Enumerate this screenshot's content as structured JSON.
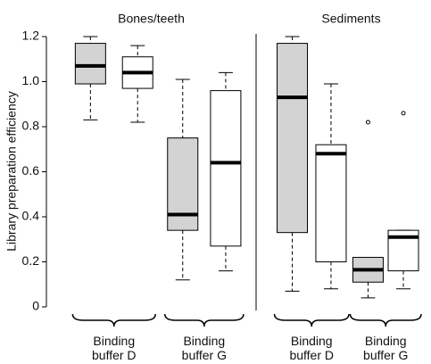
{
  "chart_data": {
    "type": "box",
    "y_label": "Library preparation efficiency",
    "ylim": [
      0,
      1.2
    ],
    "yticks": [
      0,
      0.2,
      0.4,
      0.6,
      0.8,
      {
        "value": 1,
        "label": "1.0"
      },
      1.2
    ],
    "panels": [
      {
        "title": "Bones/teeth",
        "groups": [
          {
            "label": "Binding buffer D",
            "boxes": [
              {
                "color": "#d3d3d3",
                "whisker_low": 0.83,
                "q1": 0.99,
                "median": 1.07,
                "q3": 1.17,
                "whisker_high": 1.2,
                "outliers": []
              },
              {
                "color": "#ffffff",
                "whisker_low": 0.82,
                "q1": 0.97,
                "median": 1.04,
                "q3": 1.11,
                "whisker_high": 1.16,
                "outliers": []
              }
            ]
          },
          {
            "label": "Binding buffer G",
            "boxes": [
              {
                "color": "#d3d3d3",
                "whisker_low": 0.12,
                "q1": 0.34,
                "median": 0.41,
                "q3": 0.75,
                "whisker_high": 1.01,
                "outliers": []
              },
              {
                "color": "#ffffff",
                "whisker_low": 0.16,
                "q1": 0.27,
                "median": 0.64,
                "q3": 0.96,
                "whisker_high": 1.04,
                "outliers": []
              }
            ]
          }
        ]
      },
      {
        "title": "Sediments",
        "groups": [
          {
            "label": "Binding buffer D",
            "boxes": [
              {
                "color": "#d3d3d3",
                "whisker_low": 0.07,
                "q1": 0.33,
                "median": 0.93,
                "q3": 1.17,
                "whisker_high": 1.2,
                "outliers": []
              },
              {
                "color": "#ffffff",
                "whisker_low": 0.08,
                "q1": 0.2,
                "median": 0.68,
                "q3": 0.72,
                "whisker_high": 0.99,
                "outliers": []
              }
            ]
          },
          {
            "label": "Binding buffer G",
            "boxes": [
              {
                "color": "#d3d3d3",
                "whisker_low": 0.04,
                "q1": 0.11,
                "median": 0.165,
                "q3": 0.22,
                "whisker_high": 0.22,
                "outliers": [
                  0.82
                ]
              },
              {
                "color": "#ffffff",
                "whisker_low": 0.08,
                "q1": 0.16,
                "median": 0.31,
                "q3": 0.34,
                "whisker_high": 0.34,
                "outliers": [
                  0.86
                ]
              }
            ]
          }
        ]
      }
    ]
  }
}
